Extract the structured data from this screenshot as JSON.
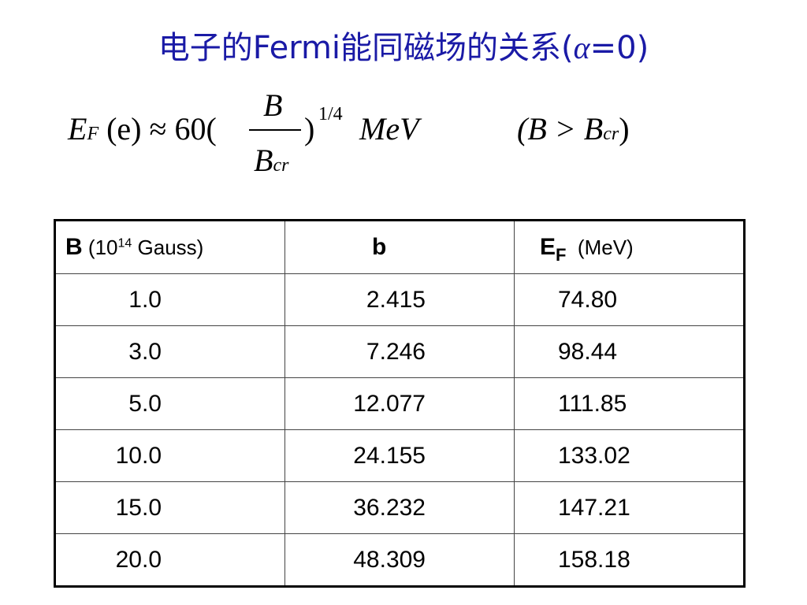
{
  "header": {
    "title_parts": [
      "电子的Fermi能同磁场的关系(",
      "α",
      "=0)"
    ]
  },
  "formula": {
    "lhs_symbol": "E",
    "lhs_subscript": "F",
    "lhs_rest": "(e) ≈ 60(",
    "numerator": "B",
    "denominator": "B",
    "denominator_subscript": "cr",
    "close": ")",
    "exponent": "1/4",
    "unit": "MeV",
    "condition_open": "(B > B",
    "condition_subscript": "cr",
    "condition_close": ")"
  },
  "table": {
    "header": {
      "col0": {
        "symbol": "B",
        "open": "(10",
        "power": "14",
        "unit": " Gauss)"
      },
      "col1": {
        "symbol": "b"
      },
      "col2": {
        "symbol": "E",
        "subscript": "F",
        "unit": "(MeV)"
      }
    },
    "rows": [
      [
        "1.0",
        "2.415",
        "74.80"
      ],
      [
        "3.0",
        "7.246",
        "98.44"
      ],
      [
        "5.0",
        "12.077",
        "111.85"
      ],
      [
        "10.0",
        "24.155",
        "133.02"
      ],
      [
        "15.0",
        "36.232",
        "147.21"
      ],
      [
        "20.0",
        "48.309",
        "158.18"
      ]
    ]
  }
}
